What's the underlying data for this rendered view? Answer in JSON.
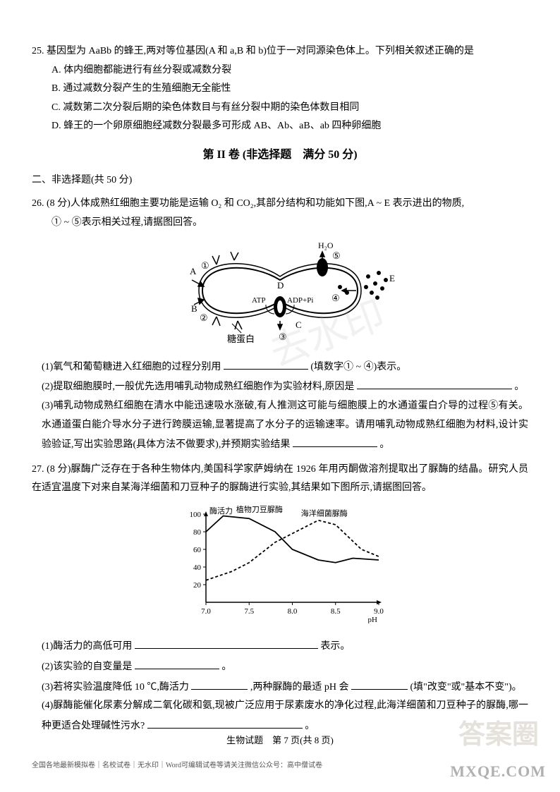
{
  "q25": {
    "stem": "25. 基因型为 AaBb 的蜂王,两对等位基因(A 和 a,B 和 b)位于一对同源染色体上。下列相关叙述正确的是",
    "A": "A. 体内细胞都能进行有丝分裂或减数分裂",
    "B": "B. 通过减数分裂产生的生殖细胞无全能性",
    "C": "C. 减数第二次分裂后期的染色体数目与有丝分裂中期的染色体数目相同",
    "D": "D. 蜂王的一个卵原细胞经减数分裂最多可形成 AB、Ab、aB、ab 四种卵细胞"
  },
  "section2_title": "第 II 卷 (非选择题　满分 50 分)",
  "section2_sub": "二、非选择题(共 50 分)",
  "q26": {
    "stem_a": "26. (8 分)人体成熟红细胞主要功能是运输 O₂ 和 CO₂,其部分结构和功能如下图,A ~ E 表示进出的物质,",
    "stem_b": "① ~ ⑤表示相关过程,请据图回答。",
    "fig": {
      "labels": {
        "A": "A",
        "B": "B",
        "C": "C",
        "D": "D",
        "E": "E",
        "H2O": "H₂O",
        "ATP": "ATP",
        "ADP": "ADP+Pi",
        "gp": "糖蛋白"
      },
      "circles": [
        "①",
        "②",
        "③",
        "④",
        "⑤"
      ],
      "colors": {
        "stroke": "#000000",
        "fill": "#ffffff",
        "dark": "#000000"
      }
    },
    "p1a": "(1)氧气和葡萄糖进入红细胞的过程分别用",
    "p1b": "(填数字① ~ ④)表示。",
    "p2a": "(2)提取细胞膜时,一般优先选用哺乳动物成熟红细胞作为实验材料,原因是",
    "p2b": "。",
    "p3": "(3)哺乳动物成熟红细胞在清水中能迅速吸水涨破,有人推测这可能与细胞膜上的水通道蛋白介导的过程⑤有关。水通道蛋白能介导水分子进行跨膜运输,显著提高了水分子的运输速率。请用哺乳动物成熟红细胞为材料,设计实验验证,写出实验思路(具体方法不做要求),并预期实验结果",
    "p3b": "。"
  },
  "q27": {
    "stem": "27. (8 分)脲酶广泛存在于各种生物体内,美国科学家萨姆纳在 1926 年用丙酮做溶剂提取出了脲酶的结晶。研究人员在适宜温度下对来自某海洋细菌和刀豆种子的脲酶进行实验,其结果如下图所示,请据图回答。",
    "chart": {
      "type": "line",
      "y_label": "酶活力",
      "x_label": "pH",
      "x_ticks": [
        7.0,
        7.5,
        8.0,
        8.5,
        9.0
      ],
      "y_ticks": [
        20,
        40,
        60,
        80,
        100
      ],
      "series": [
        {
          "name": "植物刀豆脲酶",
          "style": "solid",
          "color": "#000000",
          "points": [
            [
              7.0,
              80
            ],
            [
              7.2,
              98
            ],
            [
              7.5,
              95
            ],
            [
              7.8,
              80
            ],
            [
              8.0,
              60
            ],
            [
              8.3,
              48
            ],
            [
              8.5,
              45
            ],
            [
              8.7,
              50
            ],
            [
              9.0,
              48
            ]
          ]
        },
        {
          "name": "海洋细菌脲酶",
          "style": "dashed",
          "color": "#000000",
          "points": [
            [
              7.0,
              25
            ],
            [
              7.3,
              35
            ],
            [
              7.5,
              45
            ],
            [
              7.8,
              68
            ],
            [
              8.0,
              78
            ],
            [
              8.3,
              93
            ],
            [
              8.5,
              88
            ],
            [
              8.8,
              60
            ],
            [
              9.0,
              52
            ]
          ]
        }
      ],
      "axis_color": "#000000",
      "font_size": 11
    },
    "p1a": "(1)酶活力的高低可用",
    "p1b": "表示。",
    "p2a": "(2)该实验的自变量是",
    "p2b": "。",
    "p3a": "(3)若将实验温度降低 10 ℃,酶活力",
    "p3b": ",两种脲酶的最适 pH 会",
    "p3c": "(填\"改变\"或\"基本不变\")。",
    "p4a": "(4)脲酶能催化尿素分解成二氧化碳和氨,现被广泛应用于尿素废水的净化过程,此海洋细菌和刀豆种子的脲酶,哪一种更适合处理碱性污水?",
    "p4b": "。"
  },
  "footer": "生物试题　第 7 页(共 8 页)",
  "footer_tiny": "全国各地最新模拟卷｜名校试卷｜无水印｜Word可编辑试卷等请关注微信公众号：高中僧试卷",
  "wm_logo": "MXQE.COM",
  "wm_ans": "答案圈",
  "wm_diag": "去水印"
}
